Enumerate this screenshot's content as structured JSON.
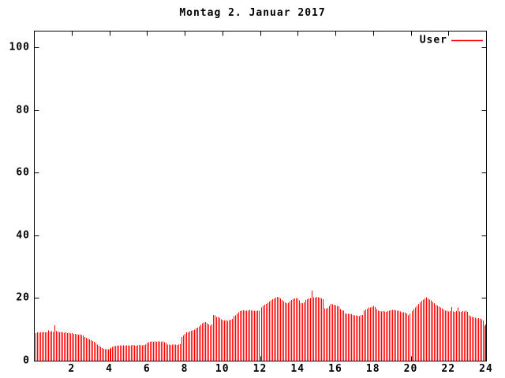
{
  "title": "Montag 2. Januar 2017",
  "colors": {
    "bar": "#ff0000",
    "axis": "#000000",
    "background": "#ffffff"
  },
  "chart_data": {
    "type": "bar",
    "title": "Montag 2. Januar 2017",
    "xlabel": "",
    "ylabel": "",
    "xlim": [
      0,
      24
    ],
    "ylim": [
      0,
      105.3
    ],
    "xticks": [
      2,
      4,
      6,
      8,
      10,
      12,
      14,
      16,
      18,
      20,
      22,
      24
    ],
    "yticks": [
      0,
      20,
      40,
      60,
      80,
      100
    ],
    "grid": "off",
    "bar_color": "#ff0000",
    "legend": {
      "label": "User",
      "position": "top-right",
      "line_color": "#ff0000"
    },
    "sample_interval_minutes": 5,
    "first_sample_hour": 0.0833,
    "gaps_at_hours": [
      12,
      20
    ],
    "series_name": "User",
    "values": [
      8.8,
      9.0,
      8.9,
      9.1,
      9.0,
      9.2,
      9.1,
      9.0,
      9.7,
      9.3,
      9.4,
      9.2,
      11.3,
      9.4,
      9.3,
      9.1,
      9.2,
      9.0,
      8.9,
      9.0,
      8.8,
      8.9,
      8.7,
      8.8,
      8.6,
      8.5,
      8.4,
      8.3,
      8.4,
      8.2,
      8.0,
      7.6,
      7.3,
      7.0,
      6.8,
      6.5,
      6.3,
      6.0,
      5.6,
      5.2,
      4.8,
      4.4,
      4.0,
      3.8,
      3.6,
      3.7,
      3.6,
      3.8,
      4.2,
      4.4,
      4.6,
      4.7,
      4.8,
      4.8,
      4.9,
      4.8,
      4.9,
      4.8,
      4.9,
      4.9,
      4.8,
      4.9,
      5.0,
      4.9,
      4.8,
      4.9,
      5.0,
      4.9,
      4.9,
      5.0,
      5.2,
      5.6,
      5.9,
      6.0,
      6.1,
      6.0,
      6.1,
      6.0,
      6.2,
      6.1,
      6.0,
      6.1,
      5.9,
      5.6,
      5.2,
      5.1,
      5.0,
      5.1,
      5.2,
      5.1,
      5.0,
      5.1,
      5.3,
      7.6,
      8.0,
      8.6,
      9.0,
      9.1,
      9.3,
      9.5,
      9.7,
      9.9,
      10.3,
      10.6,
      10.9,
      11.4,
      11.9,
      12.2,
      12.3,
      11.9,
      11.5,
      11.2,
      11.6,
      14.6,
      14.4,
      14.0,
      13.9,
      13.7,
      13.2,
      12.9,
      12.8,
      12.9,
      12.7,
      13.0,
      13.1,
      13.3,
      14.2,
      14.4,
      15.0,
      15.5,
      15.8,
      16.0,
      16.1,
      16.0,
      15.9,
      16.0,
      16.2,
      16.1,
      15.9,
      16.0,
      15.8,
      15.9,
      16.0,
      0,
      17.0,
      17.4,
      17.8,
      18.1,
      18.5,
      18.8,
      19.2,
      19.6,
      19.9,
      20.1,
      20.3,
      20.2,
      19.8,
      19.4,
      19.0,
      18.6,
      18.4,
      18.5,
      19.0,
      19.4,
      19.7,
      19.9,
      20.0,
      19.9,
      19.2,
      18.4,
      18.3,
      18.6,
      19.3,
      19.6,
      19.8,
      20.0,
      22.3,
      20.2,
      20.1,
      20.3,
      20.2,
      20.1,
      19.9,
      19.6,
      16.7,
      16.6,
      16.8,
      17.4,
      18.1,
      18.0,
      17.9,
      17.7,
      17.5,
      17.3,
      16.4,
      16.1,
      15.9,
      15.1,
      15.0,
      14.9,
      15.0,
      14.8,
      14.6,
      14.5,
      14.4,
      14.3,
      14.2,
      14.4,
      14.6,
      15.9,
      16.3,
      16.6,
      17.0,
      16.9,
      17.2,
      17.4,
      17.1,
      16.5,
      16.0,
      15.8,
      15.7,
      15.8,
      15.7,
      15.6,
      15.8,
      15.9,
      16.1,
      16.2,
      16.2,
      16.1,
      16.0,
      15.9,
      15.7,
      15.5,
      15.4,
      15.3,
      15.1,
      14.5,
      15.0,
      0,
      15.8,
      16.5,
      16.9,
      17.5,
      18.1,
      18.6,
      19.1,
      19.5,
      19.9,
      20.2,
      19.8,
      19.5,
      19.2,
      18.7,
      18.4,
      17.9,
      17.6,
      17.2,
      16.9,
      16.7,
      16.3,
      16.0,
      15.9,
      15.7,
      15.8,
      17.1,
      15.7,
      15.6,
      15.8,
      16.9,
      15.7,
      15.6,
      15.8,
      15.7,
      15.9,
      15.6,
      14.4,
      14.2,
      14.0,
      13.8,
      13.7,
      13.5,
      13.6,
      13.4,
      13.2,
      12.8,
      11.2,
      11.5
    ]
  }
}
